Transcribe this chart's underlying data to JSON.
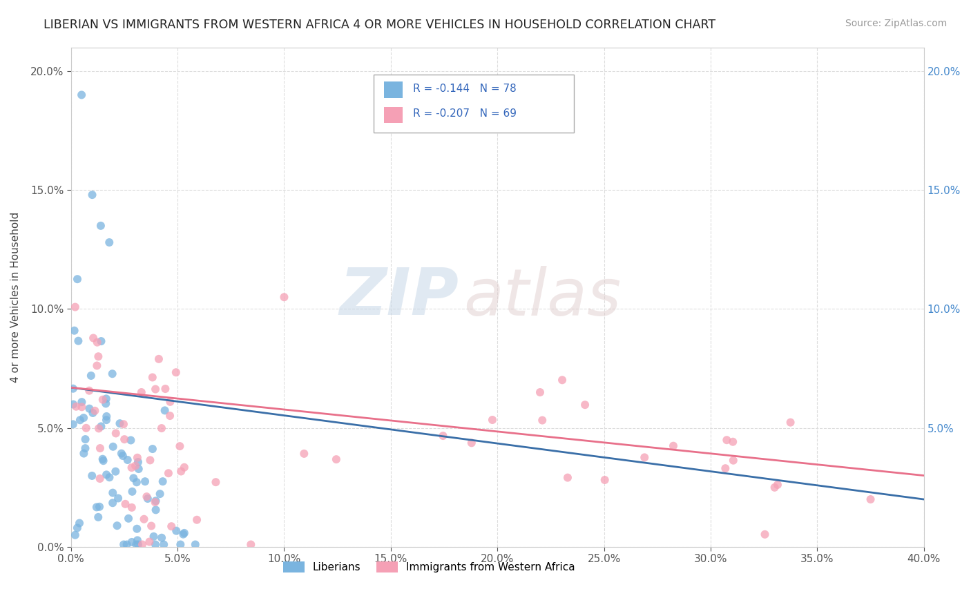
{
  "title": "LIBERIAN VS IMMIGRANTS FROM WESTERN AFRICA 4 OR MORE VEHICLES IN HOUSEHOLD CORRELATION CHART",
  "source": "Source: ZipAtlas.com",
  "ylabel": "4 or more Vehicles in Household",
  "xlim": [
    0.0,
    0.4
  ],
  "ylim": [
    0.0,
    0.21
  ],
  "xticks": [
    0.0,
    0.05,
    0.1,
    0.15,
    0.2,
    0.25,
    0.3,
    0.35,
    0.4
  ],
  "yticks": [
    0.0,
    0.05,
    0.1,
    0.15,
    0.2
  ],
  "xticklabels": [
    "0.0%",
    "5.0%",
    "10.0%",
    "15.0%",
    "20.0%",
    "25.0%",
    "30.0%",
    "35.0%",
    "40.0%"
  ],
  "yticklabels": [
    "0.0%",
    "5.0%",
    "10.0%",
    "15.0%",
    "20.0%"
  ],
  "liberian_color": "#7ab4df",
  "immigrant_color": "#f5a0b5",
  "liberian_line_color": "#3a6fa8",
  "immigrant_line_color": "#e8708a",
  "liberian_R": -0.144,
  "liberian_N": 78,
  "immigrant_R": -0.207,
  "immigrant_N": 69,
  "legend_label_1": "Liberians",
  "legend_label_2": "Immigrants from Western Africa",
  "background_color": "#ffffff",
  "grid_color": "#dddddd",
  "lib_trend_x0": 0.0,
  "lib_trend_y0": 0.067,
  "lib_trend_x1": 0.4,
  "lib_trend_y1": 0.02,
  "imm_trend_x0": 0.0,
  "imm_trend_y0": 0.067,
  "imm_trend_x1": 0.4,
  "imm_trend_y1": 0.03
}
